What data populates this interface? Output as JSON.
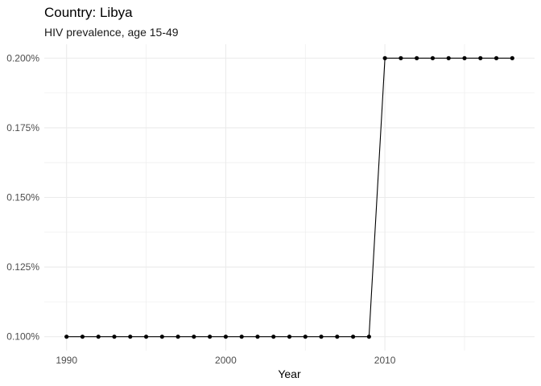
{
  "chart_data": {
    "type": "line",
    "title": "Country: Libya",
    "subtitle": "HIV prevalence, age 15-49",
    "xlabel": "Year",
    "ylabel": "",
    "x": [
      1990,
      1991,
      1992,
      1993,
      1994,
      1995,
      1996,
      1997,
      1998,
      1999,
      2000,
      2001,
      2002,
      2003,
      2004,
      2005,
      2006,
      2007,
      2008,
      2009,
      2010,
      2011,
      2012,
      2013,
      2014,
      2015,
      2016,
      2017,
      2018
    ],
    "series": [
      {
        "values": [
          0.1,
          0.1,
          0.1,
          0.1,
          0.1,
          0.1,
          0.1,
          0.1,
          0.1,
          0.1,
          0.1,
          0.1,
          0.1,
          0.1,
          0.1,
          0.1,
          0.1,
          0.1,
          0.1,
          0.1,
          0.2,
          0.2,
          0.2,
          0.2,
          0.2,
          0.2,
          0.2,
          0.2,
          0.2
        ]
      }
    ],
    "xlim": [
      1988.6,
      2019.4
    ],
    "ylim": [
      0.095,
      0.205
    ],
    "x_ticks": [
      1990,
      2000,
      2010
    ],
    "x_tick_labels": [
      "1990",
      "2000",
      "2010"
    ],
    "y_ticks": [
      0.1,
      0.125,
      0.15,
      0.175,
      0.2
    ],
    "y_tick_labels": [
      "0.100%",
      "0.125%",
      "0.150%",
      "0.175%",
      "0.200%"
    ],
    "grid": true,
    "legend": "none",
    "colors": {
      "line": "#000000",
      "grid": "#ebebeb",
      "background": "#ffffff"
    }
  }
}
